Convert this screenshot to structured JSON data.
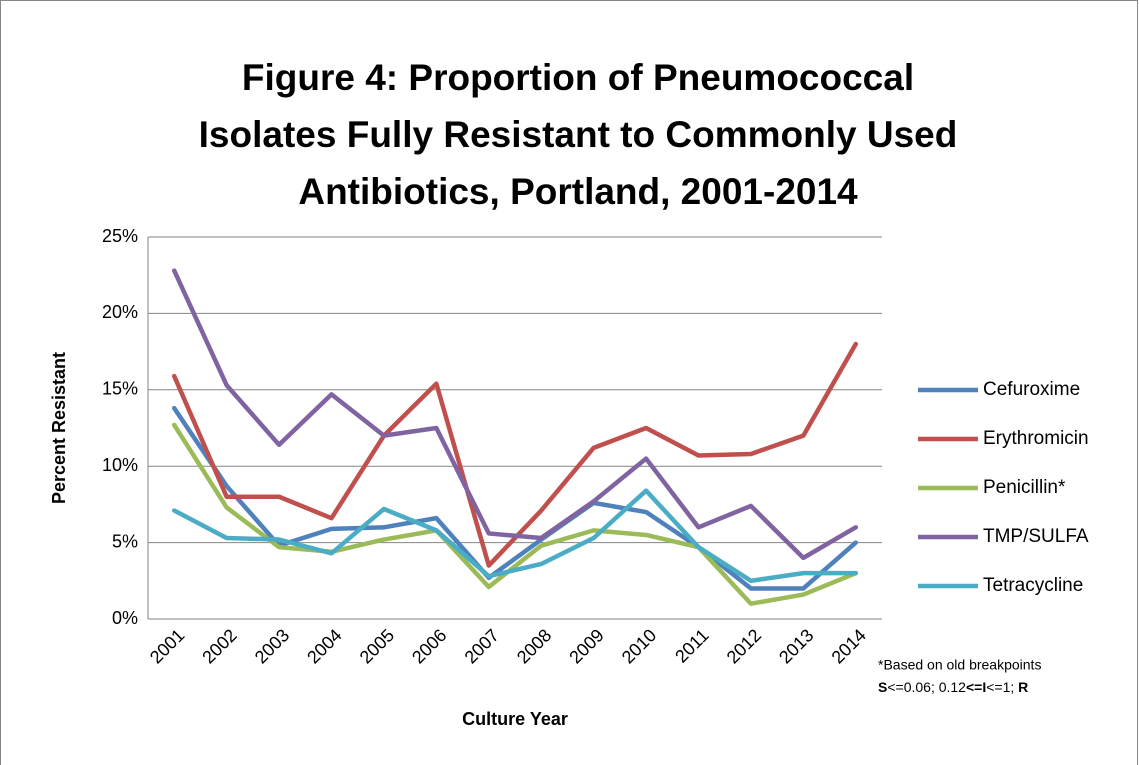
{
  "chart_data": {
    "type": "line",
    "title": [
      "Figure 4: Proportion of Pneumococcal",
      "Isolates Fully Resistant to Commonly Used",
      "Antibiotics, Portland, 2001-2014"
    ],
    "x_label": "Culture Year",
    "y_label": "Percent Resistant",
    "categories": [
      "2001",
      "2002",
      "2003",
      "2004",
      "2005",
      "2006",
      "2007",
      "2008",
      "2009",
      "2010",
      "2011",
      "2012",
      "2013",
      "2014"
    ],
    "series": [
      {
        "name": "Cefuroxime",
        "color": "#4f81bd",
        "values": [
          13.8,
          8.7,
          4.8,
          5.9,
          6.0,
          6.6,
          2.7,
          5.2,
          7.6,
          7.0,
          4.7,
          2.0,
          2.0,
          5.0
        ]
      },
      {
        "name": "Erythromicin",
        "color": "#c0504d",
        "values": [
          15.9,
          8.0,
          8.0,
          6.6,
          12.0,
          15.4,
          3.5,
          7.1,
          11.2,
          12.5,
          10.7,
          10.8,
          12.0,
          18.0
        ]
      },
      {
        "name": "Penicillin*",
        "color": "#9bbb59",
        "values": [
          12.7,
          7.3,
          4.7,
          4.4,
          5.2,
          5.8,
          2.1,
          4.8,
          5.8,
          5.5,
          4.7,
          1.0,
          1.6,
          3.0
        ]
      },
      {
        "name": "TMP/SULFA",
        "color": "#8064a2",
        "values": [
          22.8,
          15.3,
          11.4,
          14.7,
          12.0,
          12.5,
          5.6,
          5.3,
          7.7,
          10.5,
          6.0,
          7.4,
          4.0,
          6.0
        ]
      },
      {
        "name": "Tetracycline",
        "color": "#4bacc6",
        "values": [
          7.1,
          5.3,
          5.2,
          4.3,
          7.2,
          5.8,
          2.8,
          3.6,
          5.3,
          8.4,
          4.7,
          2.5,
          3.0,
          3.0
        ]
      }
    ],
    "ylim": [
      0,
      25
    ],
    "yticks": [
      {
        "value": 0,
        "label": "0%"
      },
      {
        "value": 5,
        "label": "5%"
      },
      {
        "value": 10,
        "label": "10%"
      },
      {
        "value": 15,
        "label": "15%"
      },
      {
        "value": 20,
        "label": "20%"
      },
      {
        "value": 25,
        "label": "25%"
      }
    ],
    "grid": true,
    "legend": "right",
    "footnote": {
      "line1": "*Based on old breakpoints",
      "line2": [
        {
          "text": "S",
          "bold": true
        },
        {
          "text": "<=0.06; 0.12",
          "bold": false
        },
        {
          "text": "<=",
          "bold": true
        },
        {
          "text": "I",
          "bold": true
        },
        {
          "text": "<=1; ",
          "bold": false
        },
        {
          "text": "R",
          "bold": true
        }
      ]
    }
  }
}
